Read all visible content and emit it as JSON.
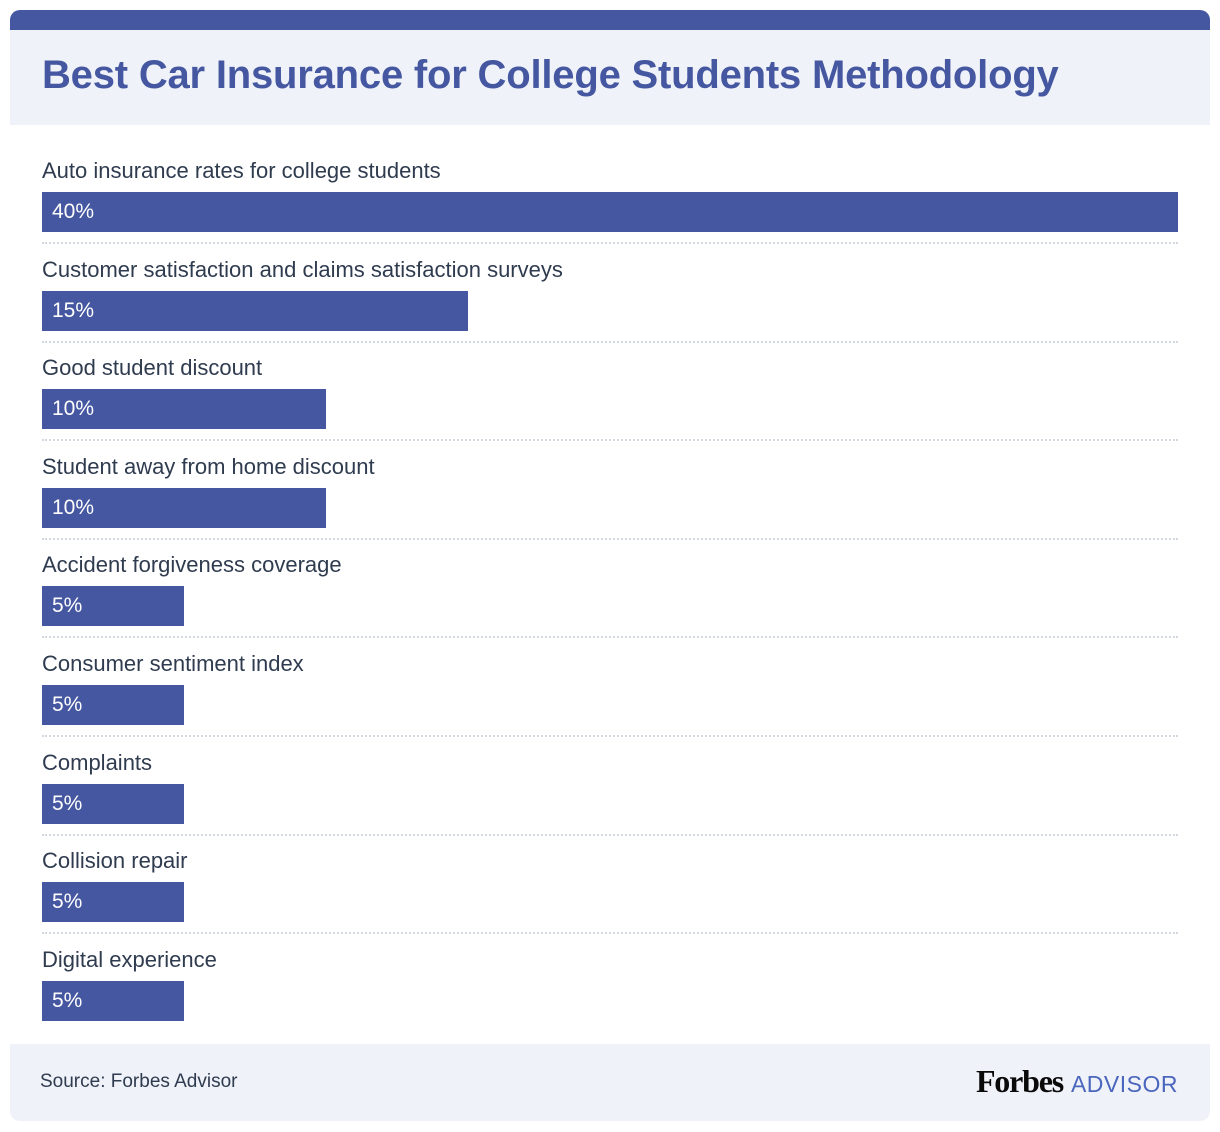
{
  "header": {
    "title": "Best Car Insurance for College Students Methodology"
  },
  "colors": {
    "accent": "#4557a1",
    "header_bg": "#eff2f8",
    "text": "#2f3b4f",
    "logo_advisor": "#4a66bd"
  },
  "rows": [
    {
      "label": "Auto insurance rates for college students",
      "value_label": "40%"
    },
    {
      "label": "Customer satisfaction and claims satisfaction surveys",
      "value_label": "15%"
    },
    {
      "label": "Good student discount",
      "value_label": "10%"
    },
    {
      "label": "Student away from home discount",
      "value_label": "10%"
    },
    {
      "label": "Accident forgiveness coverage",
      "value_label": "5%"
    },
    {
      "label": "Consumer sentiment index",
      "value_label": "5%"
    },
    {
      "label": "Complaints",
      "value_label": "5%"
    },
    {
      "label": "Collision repair",
      "value_label": "5%"
    },
    {
      "label": "Digital experience",
      "value_label": "5%"
    }
  ],
  "footer": {
    "source": "Source: Forbes Advisor",
    "logo_primary": "Forbes",
    "logo_secondary": "ADVISOR"
  },
  "chart_data": {
    "type": "bar",
    "orientation": "horizontal",
    "title": "Best Car Insurance for College Students Methodology",
    "categories": [
      "Auto insurance rates for college students",
      "Customer satisfaction and claims satisfaction surveys",
      "Good student discount",
      "Student away from home discount",
      "Accident forgiveness coverage",
      "Consumer sentiment index",
      "Complaints",
      "Collision repair",
      "Digital experience"
    ],
    "values": [
      40,
      15,
      10,
      10,
      5,
      5,
      5,
      5,
      5
    ],
    "unit": "%",
    "xlabel": "",
    "ylabel": "",
    "xlim": [
      0,
      40
    ],
    "grid": false,
    "legend": null,
    "data_labels": true,
    "source": "Source: Forbes Advisor"
  }
}
